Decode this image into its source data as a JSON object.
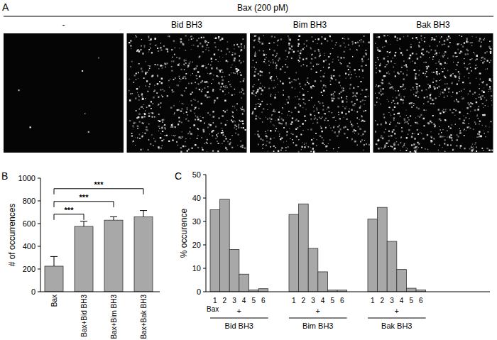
{
  "chart_data": [
    {
      "type": "image",
      "label": "A",
      "title": "Bax (200 pM)",
      "categories": [
        "-",
        "Bid BH3",
        "Bim BH3",
        "Bak BH3"
      ]
    },
    {
      "type": "bar",
      "label": "B",
      "categories": [
        "Bax",
        "Bax+Bid BH3",
        "Bax+Bim BH3",
        "Bax+Bak BH3"
      ],
      "values": [
        225,
        575,
        630,
        660
      ],
      "errors": [
        85,
        45,
        30,
        55
      ],
      "color": "#a8a8a8",
      "ylabel": "# of occurrences",
      "ylim": [
        0,
        1000
      ],
      "yticks": [
        0,
        200,
        400,
        600,
        800,
        1000
      ],
      "comparisons": [
        {
          "from": 0,
          "to": 1,
          "label": "***"
        },
        {
          "from": 0,
          "to": 2,
          "label": "***"
        },
        {
          "from": 0,
          "to": 3,
          "label": "***"
        }
      ]
    },
    {
      "type": "bar",
      "label": "C",
      "categories": [
        "1",
        "2",
        "3",
        "4",
        "5",
        "6"
      ],
      "series": [
        {
          "name": "Bid BH3",
          "values": [
            35,
            39.5,
            18,
            7.5,
            0.8,
            1.3
          ]
        },
        {
          "name": "Bim BH3",
          "values": [
            33,
            37.5,
            18.5,
            8.5,
            0.7,
            0.7
          ]
        },
        {
          "name": "Bak BH3",
          "values": [
            31,
            36,
            21.5,
            9.5,
            1.5,
            0.8
          ]
        }
      ],
      "color": "#a8a8a8",
      "ylabel": "% occurence",
      "ylim": [
        0,
        50
      ],
      "yticks": [
        0,
        10,
        20,
        30,
        40,
        50
      ],
      "annotations": {
        "row_label": "Bax",
        "row_mark": "+"
      }
    }
  ]
}
